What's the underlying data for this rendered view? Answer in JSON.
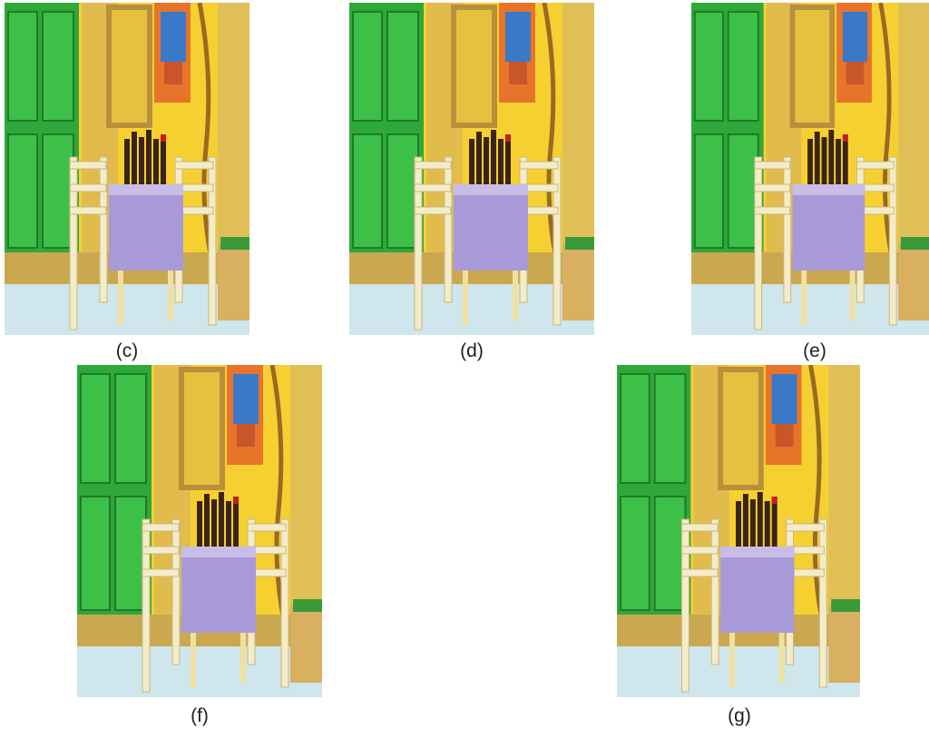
{
  "panels": [
    {
      "label": "(c)"
    },
    {
      "label": "(d)"
    },
    {
      "label": "(e)"
    },
    {
      "label": "(f)"
    },
    {
      "label": "(g)"
    }
  ]
}
